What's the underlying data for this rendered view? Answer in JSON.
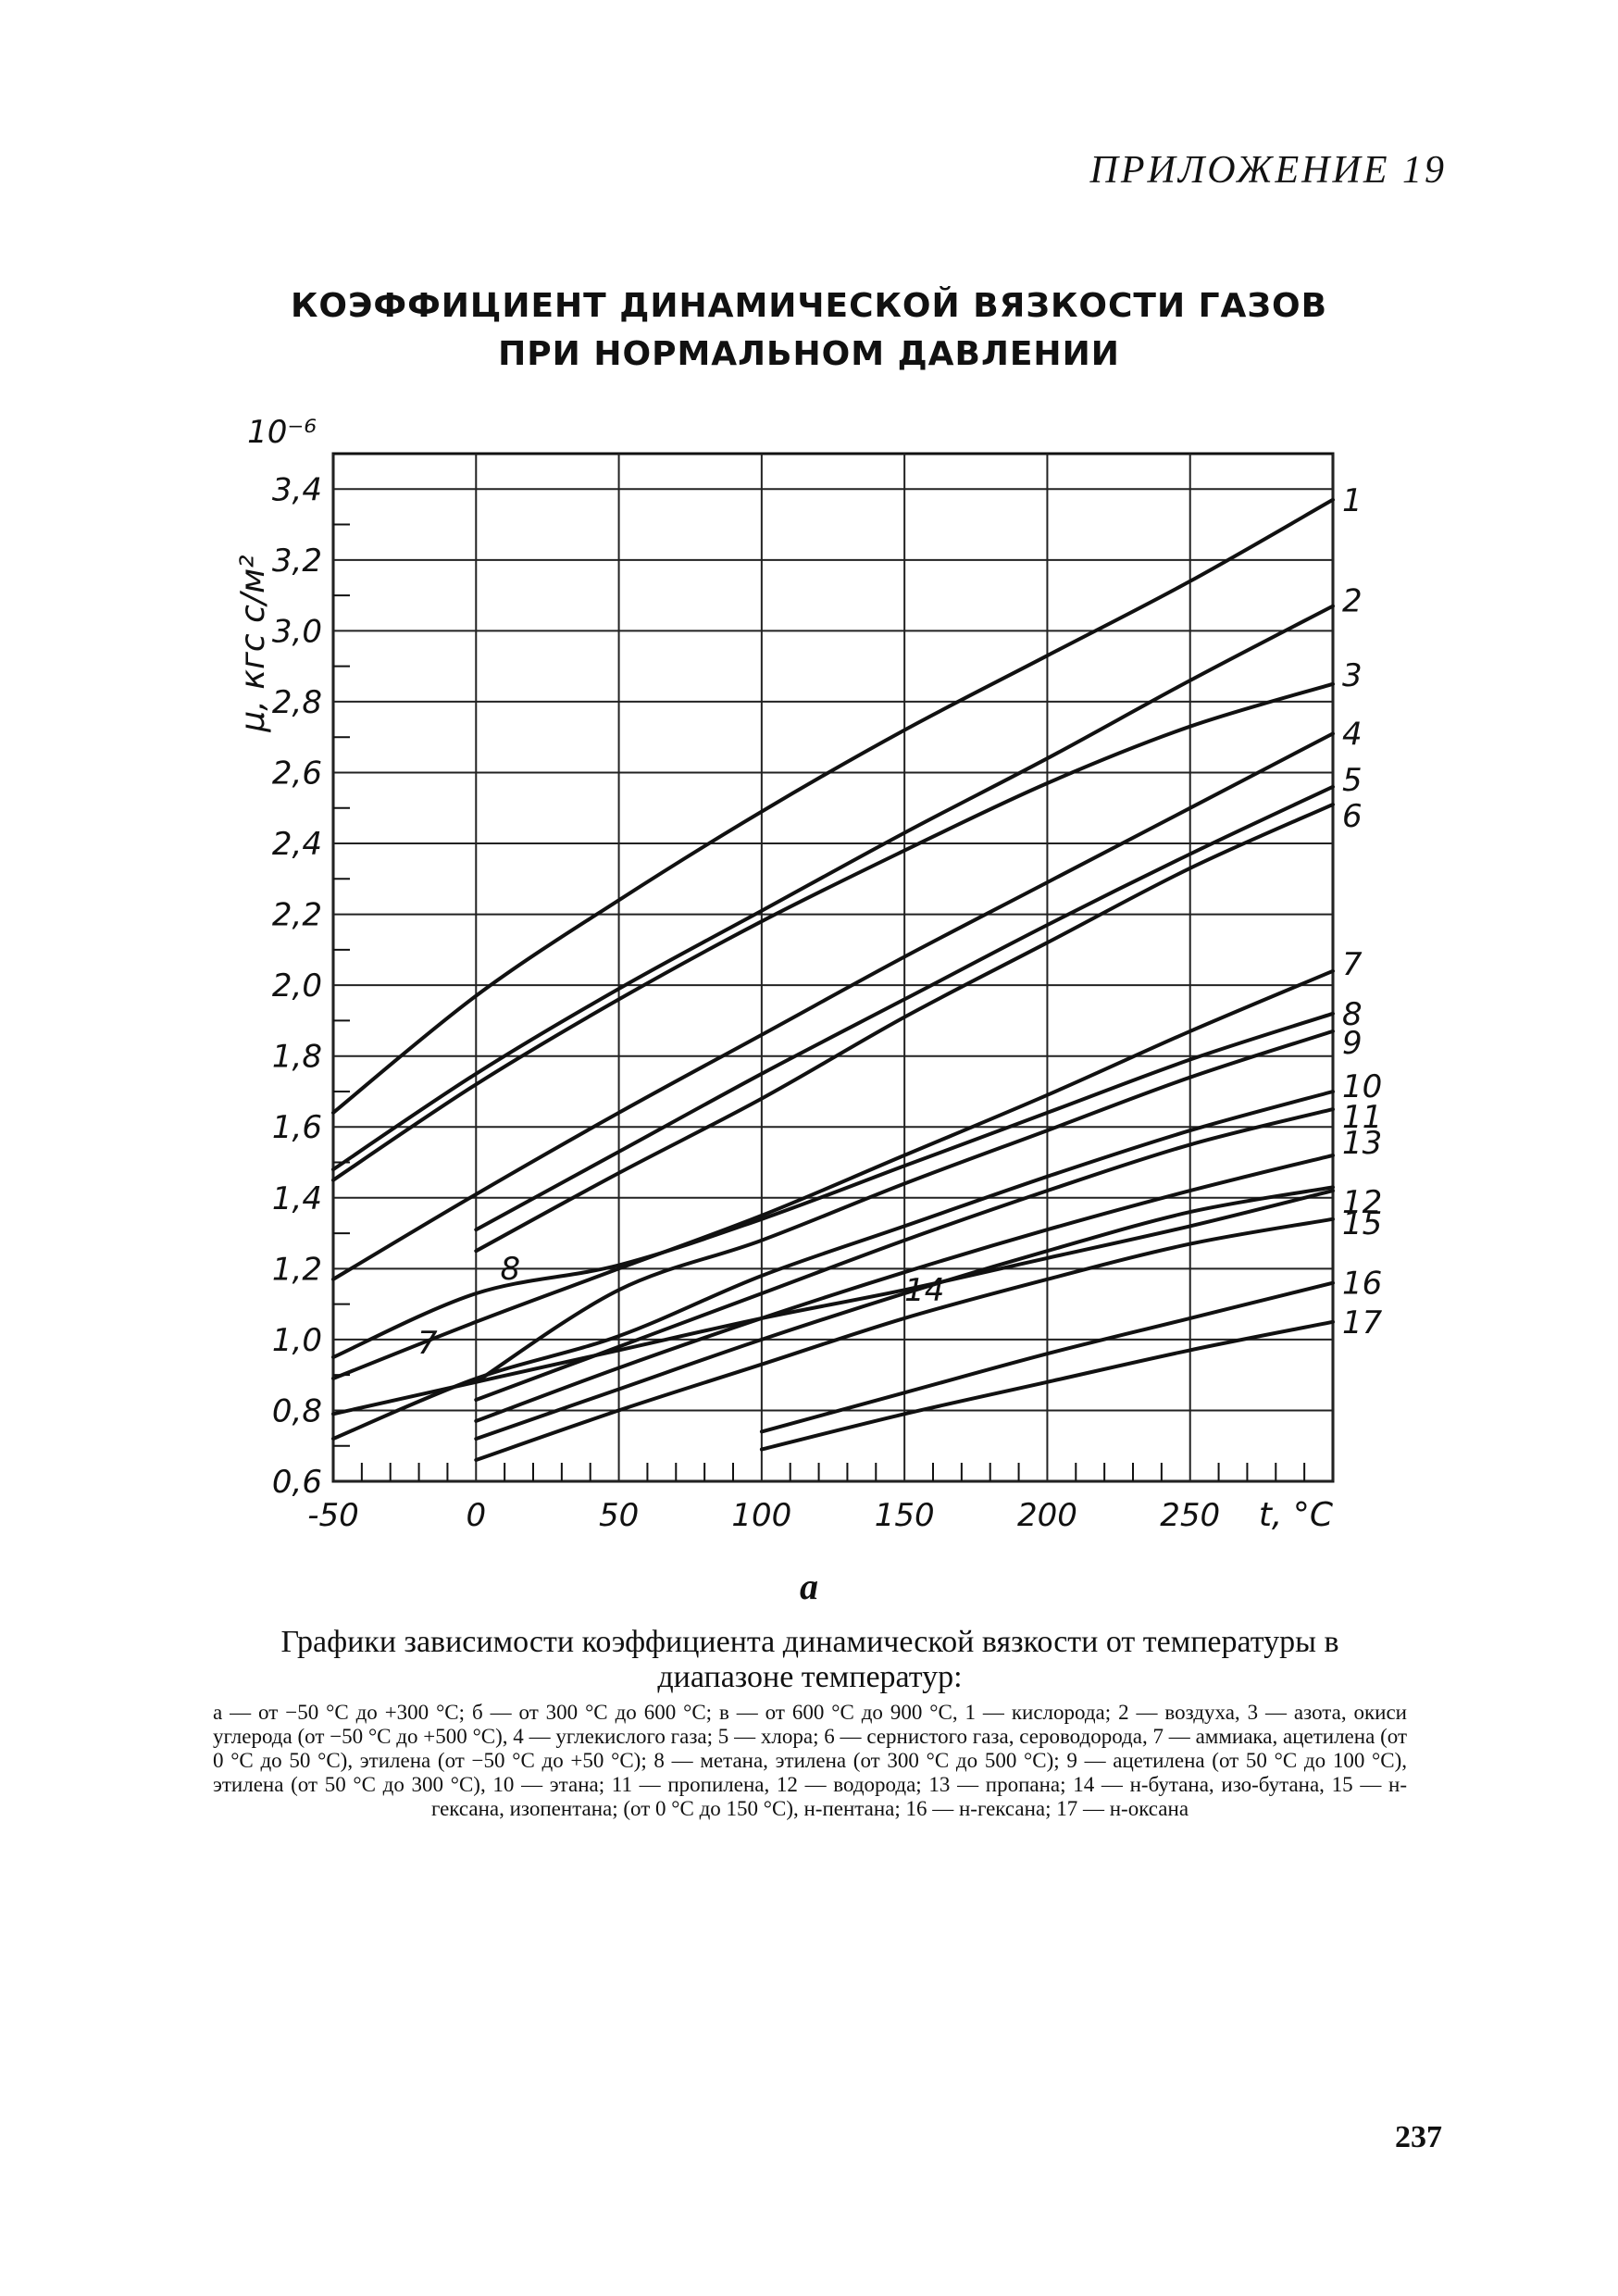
{
  "page": {
    "header": "ПРИЛОЖЕНИЕ  19",
    "page_number": "237",
    "sublabel": "a"
  },
  "chart_data": {
    "type": "line",
    "title": [
      "КОЭФФИЦИЕНТ ДИНАМИЧЕСКОЙ ВЯЗКОСТИ ГАЗОВ",
      "ПРИ НОРМАЛЬНОМ ДАВЛЕНИИ"
    ],
    "xlabel": "t, °C",
    "ylabel": "μ, кгс с/м²",
    "y_multiplier": "10⁻⁶",
    "xlim": [
      -50,
      300
    ],
    "ylim": [
      0.6,
      3.5
    ],
    "x_ticks": [
      -50,
      0,
      50,
      100,
      150,
      200,
      250
    ],
    "x_tick_labels": [
      "-50",
      "0",
      "50",
      "100",
      "150",
      "200",
      "250"
    ],
    "y_ticks": [
      0.6,
      0.8,
      1.0,
      1.2,
      1.4,
      1.6,
      1.8,
      2.0,
      2.2,
      2.4,
      2.6,
      2.8,
      3.0,
      3.2,
      3.4
    ],
    "y_tick_labels": [
      "0,6",
      "0,8",
      "1,0",
      "1,2",
      "1,4",
      "1,6",
      "1,8",
      "2,0",
      "2,2",
      "2,4",
      "2,6",
      "2,8",
      "3,0",
      "3,2",
      "3,4"
    ],
    "grid": true,
    "series": [
      {
        "name": "1",
        "x": [
          -50,
          0,
          50,
          100,
          150,
          200,
          250,
          300
        ],
        "y": [
          1.64,
          1.97,
          2.24,
          2.49,
          2.72,
          2.93,
          3.14,
          3.37
        ]
      },
      {
        "name": "2",
        "x": [
          -50,
          0,
          50,
          100,
          150,
          200,
          250,
          300
        ],
        "y": [
          1.48,
          1.75,
          1.99,
          2.21,
          2.43,
          2.64,
          2.86,
          3.07
        ]
      },
      {
        "name": "3",
        "x": [
          -50,
          0,
          50,
          100,
          150,
          200,
          250,
          300
        ],
        "y": [
          1.45,
          1.72,
          1.96,
          2.18,
          2.38,
          2.57,
          2.73,
          2.85
        ]
      },
      {
        "name": "4",
        "x": [
          -50,
          0,
          50,
          100,
          150,
          200,
          250,
          300
        ],
        "y": [
          1.17,
          1.41,
          1.64,
          1.86,
          2.08,
          2.29,
          2.5,
          2.71
        ]
      },
      {
        "name": "5",
        "x": [
          0,
          50,
          100,
          150,
          200,
          250,
          300
        ],
        "y": [
          1.31,
          1.53,
          1.75,
          1.96,
          2.17,
          2.37,
          2.56
        ]
      },
      {
        "name": "6",
        "x": [
          0,
          50,
          100,
          150,
          200,
          250,
          300
        ],
        "y": [
          1.25,
          1.47,
          1.68,
          1.91,
          2.12,
          2.33,
          2.51
        ]
      },
      {
        "name": "7",
        "x": [
          -50,
          0,
          50,
          100,
          150,
          200,
          250,
          300
        ],
        "y": [
          0.89,
          1.05,
          1.2,
          1.35,
          1.52,
          1.69,
          1.87,
          2.04
        ]
      },
      {
        "name": "8",
        "x": [
          -50,
          0,
          50,
          100,
          150,
          200,
          250,
          300
        ],
        "y": [
          0.95,
          1.13,
          1.21,
          1.34,
          1.49,
          1.64,
          1.79,
          1.92
        ]
      },
      {
        "name": "9",
        "x": [
          0,
          50,
          100,
          150,
          200,
          250,
          300
        ],
        "y": [
          0.88,
          1.14,
          1.28,
          1.44,
          1.59,
          1.74,
          1.87
        ]
      },
      {
        "name": "10",
        "x": [
          -50,
          0,
          50,
          100,
          150,
          200,
          250,
          300
        ],
        "y": [
          0.72,
          0.89,
          1.01,
          1.18,
          1.32,
          1.46,
          1.59,
          1.7
        ]
      },
      {
        "name": "11",
        "x": [
          0,
          50,
          100,
          150,
          200,
          250,
          300
        ],
        "y": [
          0.83,
          0.98,
          1.13,
          1.28,
          1.42,
          1.55,
          1.65
        ]
      },
      {
        "name": "12",
        "x": [
          -50,
          0,
          50,
          100,
          150,
          200,
          250,
          300
        ],
        "y": [
          0.79,
          0.88,
          0.97,
          1.06,
          1.14,
          1.23,
          1.32,
          1.42
        ]
      },
      {
        "name": "13",
        "x": [
          0,
          50,
          100,
          150,
          200,
          250,
          300
        ],
        "y": [
          0.77,
          0.92,
          1.06,
          1.19,
          1.31,
          1.42,
          1.52
        ]
      },
      {
        "name": "14",
        "x": [
          0,
          50,
          100,
          150,
          200,
          250,
          300
        ],
        "y": [
          0.72,
          0.86,
          1.0,
          1.13,
          1.25,
          1.36,
          1.43
        ]
      },
      {
        "name": "15",
        "x": [
          0,
          50,
          100,
          150,
          200,
          250,
          300
        ],
        "y": [
          0.66,
          0.8,
          0.93,
          1.06,
          1.17,
          1.27,
          1.34
        ]
      },
      {
        "name": "16",
        "x": [
          100,
          150,
          200,
          250,
          300
        ],
        "y": [
          0.74,
          0.85,
          0.96,
          1.06,
          1.16
        ]
      },
      {
        "name": "17",
        "x": [
          100,
          150,
          200,
          250,
          300
        ],
        "y": [
          0.69,
          0.79,
          0.88,
          0.97,
          1.05
        ]
      }
    ],
    "inline_labels": [
      "8",
      "7",
      "14"
    ]
  },
  "caption": {
    "main": "Графики зависимости коэффициента динамической вязкости от температуры в диапазоне температур:",
    "legend": "а — от −50 °С до +300 °С; б — от 300 °С до 600 °С; в — от 600 °С до 900 °С, 1 — кислорода; 2 — воздуха, 3 — азота, окиси углерода (от −50 °С до +500 °С), 4 — углекислого газа; 5 — хлора; 6 — сернистого газа, сероводорода, 7 — аммиака, ацетилена (от 0 °С до 50 °С), этилена (от −50 °С до +50 °С); 8 — метана, этилена (от 300 °С до 500 °С); 9 — ацетилена (от 50 °С до 100 °С), этилена (от 50 °С до 300 °С), 10 — этана; 11 — пропилена, 12 — водорода; 13 — пропана; 14 — н-бутана, изо-бутана, 15 — н-гексана, изопентана; (от 0 °С до 150 °С), н-пентана; 16 — н-гексана; 17 — н-оксана"
  }
}
